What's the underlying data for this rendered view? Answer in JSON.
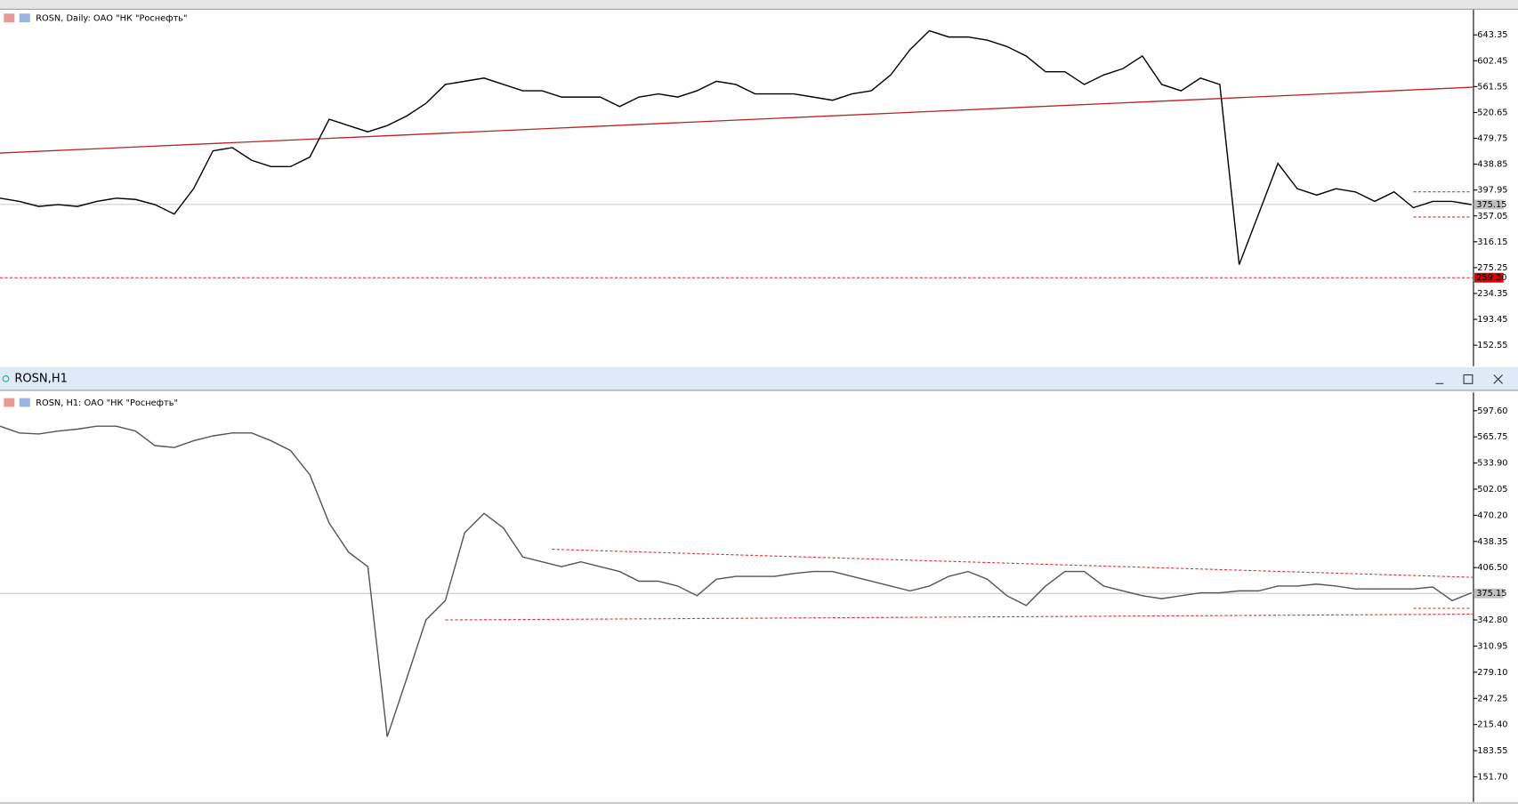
{
  "daily": {
    "caption": "ROSN, Daily: ОАО \"НК \"Роснефть\"",
    "ylim": [
      119.4,
      683.2
    ],
    "yticks": [
      643.35,
      602.45,
      561.55,
      520.65,
      479.75,
      438.85,
      397.95,
      357.05,
      316.15,
      275.25,
      234.35,
      193.45,
      152.55
    ],
    "bid": {
      "value": 375.15,
      "label": "375.15"
    },
    "level": {
      "value": 259.3,
      "label": "259.30"
    },
    "close": [
      385,
      380,
      372,
      375,
      372,
      380,
      385,
      383,
      375,
      360,
      400,
      460,
      465,
      445,
      435,
      435,
      450,
      510,
      500,
      490,
      500,
      515,
      535,
      565,
      570,
      575,
      565,
      555,
      555,
      545,
      545,
      545,
      530,
      545,
      550,
      545,
      555,
      570,
      565,
      550,
      550,
      550,
      545,
      540,
      550,
      555,
      580,
      620,
      650,
      640,
      640,
      635,
      625,
      610,
      585,
      585,
      565,
      580,
      590,
      610,
      565,
      555,
      575,
      565,
      280,
      360,
      440,
      400,
      390,
      400,
      395,
      380,
      395,
      370,
      380,
      380,
      375
    ]
  },
  "window": {
    "title": "ROSN,H1"
  },
  "h1": {
    "caption": "ROSN, H1: ОАО \"НК \"Роснефть\"",
    "ylim": [
      121.0,
      620.0
    ],
    "yticks": [
      {
        "value": 597.6,
        "label": "597.60"
      },
      565.75,
      {
        "value": 533.9,
        "label": "533.90"
      },
      502.05,
      {
        "value": 470.2,
        "label": "470.20"
      },
      438.35,
      {
        "value": 406.5,
        "label": "406.50"
      },
      {
        "value": 342.8,
        "label": "342.80"
      },
      310.95,
      {
        "value": 279.1,
        "label": "279.10"
      },
      247.25,
      {
        "value": 215.4,
        "label": "215.40"
      },
      183.55,
      {
        "value": 151.7,
        "label": "151.70"
      }
    ],
    "bid": {
      "value": 375.15,
      "label": "375.15"
    },
    "close": [
      578.7,
      570.5,
      569.3,
      572.8,
      575.2,
      578.7,
      578.7,
      572.8,
      555.1,
      552.8,
      561.0,
      566.9,
      570.5,
      570.5,
      561.0,
      549.2,
      519.7,
      460.7,
      425.4,
      407.7,
      200.5,
      271.0,
      342.8,
      366.4,
      449.0,
      472.6,
      454.9,
      419.5,
      413.6,
      407.7,
      413.6,
      407.7,
      401.8,
      390.0,
      390.0,
      384.1,
      372.3,
      392.3,
      395.9,
      395.9,
      395.9,
      399.4,
      401.8,
      401.8,
      395.9,
      390.0,
      384.1,
      378.2,
      384.1,
      395.9,
      401.8,
      392.3,
      372.3,
      360.5,
      384.1,
      401.8,
      401.8,
      384.1,
      378.2,
      372.3,
      368.7,
      372.3,
      375.8,
      375.8,
      378.2,
      378.2,
      384.1,
      384.1,
      386.4,
      384.1,
      380.5,
      380.5,
      380.5,
      380.5,
      382.9,
      366.4,
      375.8
    ]
  }
}
